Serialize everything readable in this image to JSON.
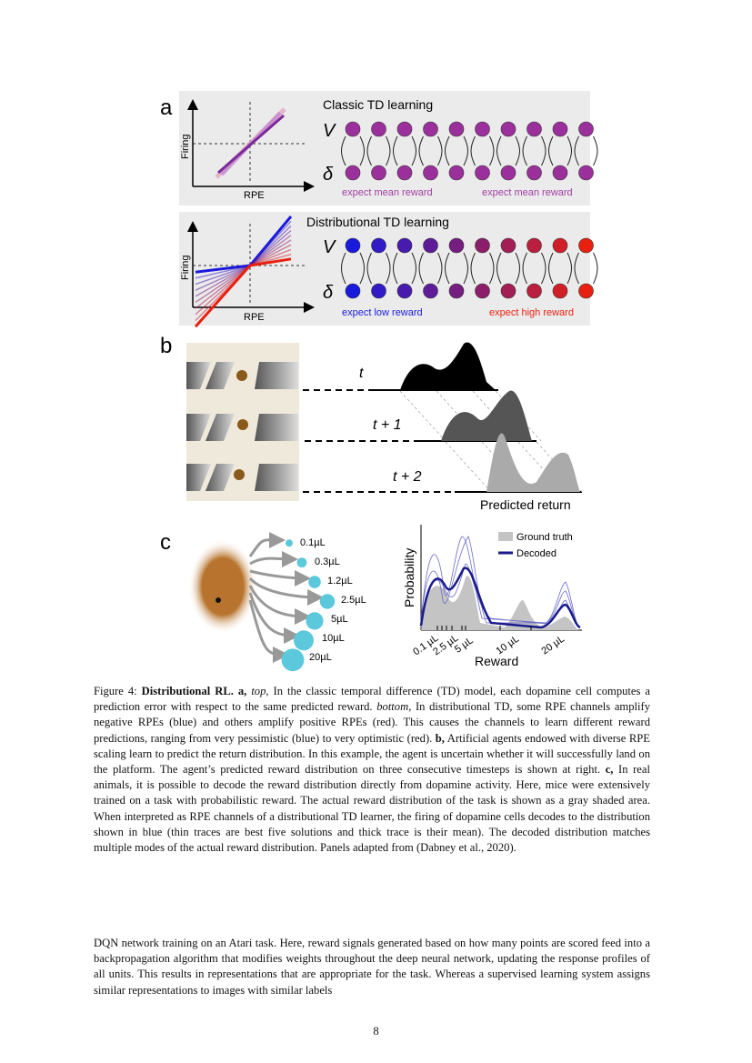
{
  "figure": {
    "panel_a": {
      "label": "a",
      "top": {
        "title": "Classic TD learning",
        "xlabel": "RPE",
        "ylabel": "Firing",
        "v_label": "V",
        "delta_label": "δ",
        "left_note": "expect mean reward",
        "right_note": "expect mean reward",
        "node_color": "#9b2f9b",
        "note_color": "#a040a0"
      },
      "bottom": {
        "title": "Distributional TD learning",
        "xlabel": "RPE",
        "ylabel": "Firing",
        "v_label": "V",
        "delta_label": "δ",
        "left_note": "expect low reward",
        "right_note": "expect high reward",
        "low_color": "#1a1adc",
        "high_color": "#e82010"
      }
    },
    "panel_b": {
      "label": "b",
      "t0": "t",
      "t1": "t + 1",
      "t2": "t + 2",
      "xlabel": "Predicted return"
    },
    "panel_c": {
      "label": "c",
      "rewards": [
        "0.1µL",
        "0.3µL",
        "1.2µL",
        "2.5µL",
        "5µL",
        "10µL",
        "20µL"
      ],
      "chart_data": {
        "type": "area",
        "xlabel": "Reward",
        "ylabel": "Probability",
        "tick_labels": [
          "0.1 µL",
          "2.5 µL",
          "5 µL",
          "10 µL",
          "20 µL"
        ],
        "legend": [
          "Ground truth",
          "Decoded"
        ],
        "legend_placement": "top-right",
        "colors": {
          "ground_truth": "#c4c4c4",
          "decoded": "#1a1a8c",
          "traces": "#6a6ac8"
        }
      }
    }
  },
  "caption": {
    "lead": "Figure 4: ",
    "title": "Distributional RL.",
    "a_label": " a,",
    "top_word": "top",
    "a_text1": ", In the classic temporal difference (TD) model, each dopamine cell computes a prediction error with respect to the same predicted reward. ",
    "bottom_word": "bottom",
    "a_text2": ", In distributional TD, some RPE channels amplify negative RPEs (blue) and others amplify positive RPEs (red). This causes the channels to learn different reward predictions, ranging from very pessimistic (blue) to very optimistic (red). ",
    "b_label": "b,",
    "b_text": " Artificial agents endowed with diverse RPE scaling learn to predict the return distribution. In this example, the agent is uncertain whether it will successfully land on the platform. The agent’s predicted reward distribution on three consecutive timesteps is shown at right. ",
    "c_label": "c,",
    "c_text": " In real animals, it is possible to decode the reward distribution directly from dopamine activity. Here, mice were extensively trained on a task with probabilistic reward. The actual reward distribution of the task is shown as a gray shaded area. When interpreted as RPE channels of a distributional TD learner, the firing of dopamine cells decodes to the distribution shown in blue (thin traces are best five solutions and thick trace is their mean). The decoded distribution matches multiple modes of the actual reward distribution. Panels adapted from (Dabney et al., 2020)."
  },
  "body_text": "DQN network training on an Atari task. Here, reward signals generated based on how many points are scored feed into a backpropagation algorithm that modifies weights throughout the deep neural network, updating the response profiles of all units. This results in representations that are appropriate for the task. Whereas a supervised learning system assigns similar representations to images with similar labels",
  "page_number": "8"
}
